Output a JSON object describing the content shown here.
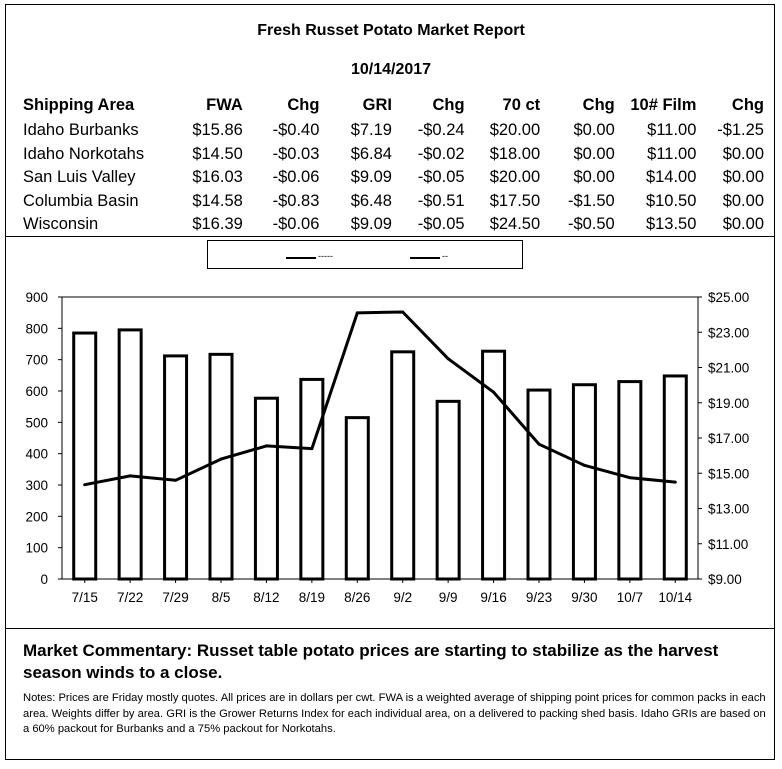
{
  "report": {
    "title": "Fresh Russet Potato Market Report",
    "date": "10/14/2017"
  },
  "price_table": {
    "headers": [
      "Shipping Area",
      "FWA",
      "Chg",
      "GRI",
      "Chg",
      "70 ct",
      "Chg",
      "10# Film",
      "Chg"
    ],
    "rows": [
      [
        "Idaho Burbanks",
        "$15.86",
        "-$0.40",
        "$7.19",
        "-$0.24",
        "$20.00",
        "$0.00",
        "$11.00",
        "-$1.25"
      ],
      [
        "Idaho Norkotahs",
        "$14.50",
        "-$0.03",
        "$6.84",
        "-$0.02",
        "$18.00",
        "$0.00",
        "$11.00",
        "$0.00"
      ],
      [
        "San Luis Valley",
        "$16.03",
        "-$0.06",
        "$9.09",
        "-$0.05",
        "$20.00",
        "$0.00",
        "$14.00",
        "$0.00"
      ],
      [
        "Columbia Basin",
        "$14.58",
        "-$0.83",
        "$6.48",
        "-$0.51",
        "$17.50",
        "-$1.50",
        "$10.50",
        "$0.00"
      ],
      [
        "Wisconsin",
        "$16.39",
        "-$0.06",
        "$9.09",
        "-$0.05",
        "$24.50",
        "-$0.50",
        "$13.50",
        "$0.00"
      ]
    ]
  },
  "legend": {
    "items": [
      "-----",
      "--"
    ]
  },
  "chart_data": {
    "type": "bar",
    "categories": [
      "7/15",
      "7/22",
      "7/29",
      "8/5",
      "8/12",
      "8/19",
      "8/26",
      "9/2",
      "9/9",
      "9/16",
      "9/23",
      "9/30",
      "10/7",
      "10/14"
    ],
    "series": [
      {
        "type": "bar",
        "axis": "left",
        "values": [
          785,
          795,
          712,
          717,
          577,
          637,
          515,
          725,
          567,
          727,
          603,
          620,
          630,
          648
        ]
      },
      {
        "type": "line",
        "axis": "right",
        "values": [
          14.35,
          14.85,
          14.6,
          15.8,
          16.55,
          16.4,
          24.1,
          24.15,
          21.5,
          19.6,
          16.65,
          15.45,
          14.75,
          14.5
        ]
      }
    ],
    "y_left": {
      "min": 0,
      "max": 900,
      "ticks": [
        "0",
        "100",
        "200",
        "300",
        "400",
        "500",
        "600",
        "700",
        "800",
        "900"
      ]
    },
    "y_right": {
      "min": 9,
      "max": 25,
      "ticks": [
        "$9.00",
        "$11.00",
        "$13.00",
        "$15.00",
        "$17.00",
        "$19.00",
        "$21.00",
        "$23.00",
        "$25.00"
      ]
    },
    "legend_position": "top-center",
    "grid": false
  },
  "commentary": "Market Commentary: Russet table potato prices are starting to stabilize as the harvest season winds to a close.",
  "notes": "Notes: Prices are Friday mostly quotes. All prices are in dollars per cwt. FWA is a weighted average of shipping point prices for  common packs in each area. Weights differ by area. GRI is the Grower Returns Index for each individual area, on a delivered to packing shed basis. Idaho GRIs are based on a 60% packout for Burbanks and a 75% packout for Norkotahs."
}
